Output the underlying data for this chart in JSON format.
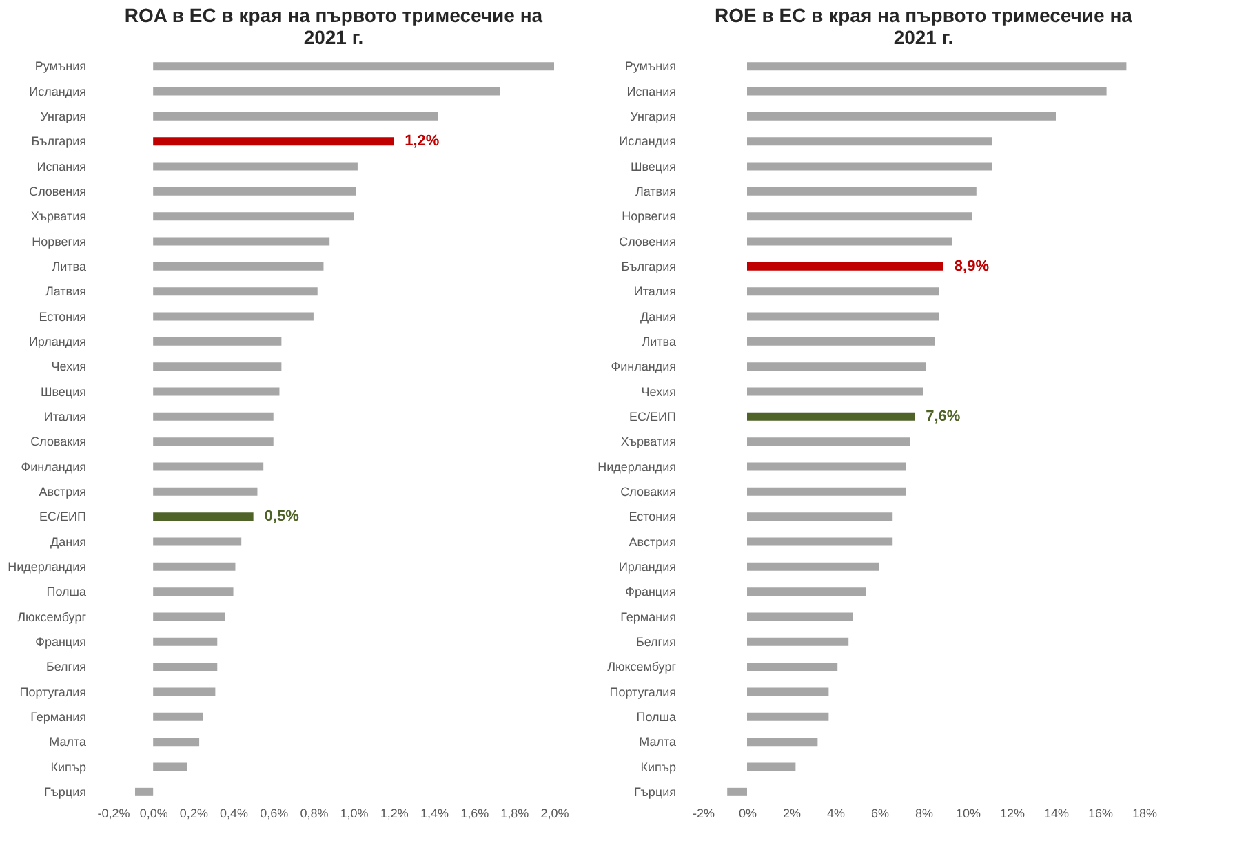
{
  "chart_data": [
    {
      "type": "bar",
      "orientation": "horizontal",
      "title": "ROA в ЕС в края на първото тримесечие на 2021 г.",
      "categories": [
        "Румъния",
        "Исландия",
        "Унгария",
        "България",
        "Испания",
        "Словения",
        "Хърватия",
        "Норвегия",
        "Литва",
        "Латвия",
        "Естония",
        "Ирландия",
        "Чехия",
        "Швеция",
        "Италия",
        "Словакия",
        "Финландия",
        "Австрия",
        "ЕС/ЕИП",
        "Дания",
        "Нидерландия",
        "Полша",
        "Люксембург",
        "Франция",
        "Белгия",
        "Португалия",
        "Германия",
        "Малта",
        "Кипър",
        "Гърция"
      ],
      "values": [
        2.0,
        1.73,
        1.42,
        1.2,
        1.02,
        1.01,
        1.0,
        0.88,
        0.85,
        0.82,
        0.8,
        0.64,
        0.64,
        0.63,
        0.6,
        0.6,
        0.55,
        0.52,
        0.5,
        0.44,
        0.41,
        0.4,
        0.36,
        0.32,
        0.32,
        0.31,
        0.25,
        0.23,
        0.17,
        -0.09
      ],
      "colors": [
        "#a6a6a6",
        "#a6a6a6",
        "#a6a6a6",
        "#c00000",
        "#a6a6a6",
        "#a6a6a6",
        "#a6a6a6",
        "#a6a6a6",
        "#a6a6a6",
        "#a6a6a6",
        "#a6a6a6",
        "#a6a6a6",
        "#a6a6a6",
        "#a6a6a6",
        "#a6a6a6",
        "#a6a6a6",
        "#a6a6a6",
        "#a6a6a6",
        "#4f6228",
        "#a6a6a6",
        "#a6a6a6",
        "#a6a6a6",
        "#a6a6a6",
        "#a6a6a6",
        "#a6a6a6",
        "#a6a6a6",
        "#a6a6a6",
        "#a6a6a6",
        "#a6a6a6",
        "#a6a6a6"
      ],
      "value_labels": [
        null,
        null,
        null,
        "1,2%",
        null,
        null,
        null,
        null,
        null,
        null,
        null,
        null,
        null,
        null,
        null,
        null,
        null,
        null,
        "0,5%",
        null,
        null,
        null,
        null,
        null,
        null,
        null,
        null,
        null,
        null,
        null
      ],
      "xlim": [
        -0.2,
        2.0
      ],
      "xticks": [
        {
          "value": -0.2,
          "label": "-0,2%"
        },
        {
          "value": 0,
          "label": "0,0%"
        },
        {
          "value": 0.2,
          "label": "0,2%"
        },
        {
          "value": 0.4,
          "label": "0,4%"
        },
        {
          "value": 0.6,
          "label": "0,6%"
        },
        {
          "value": 0.8,
          "label": "0,8%"
        },
        {
          "value": 1.0,
          "label": "1,0%"
        },
        {
          "value": 1.2,
          "label": "1,2%"
        },
        {
          "value": 1.4,
          "label": "1,4%"
        },
        {
          "value": 1.6,
          "label": "1,6%"
        },
        {
          "value": 1.8,
          "label": "1,8%"
        },
        {
          "value": 2.0,
          "label": "2,0%"
        }
      ],
      "grid": false
    },
    {
      "type": "bar",
      "orientation": "horizontal",
      "title": "ROE в ЕС в края на първото тримесечие на 2021 г.",
      "categories": [
        "Румъния",
        "Испания",
        "Унгария",
        "Исландия",
        "Швеция",
        "Латвия",
        "Норвегия",
        "Словения",
        "България",
        "Италия",
        "Дания",
        "Литва",
        "Финландия",
        "Чехия",
        "ЕС/ЕИП",
        "Хърватия",
        "Нидерландия",
        "Словакия",
        "Естония",
        "Австрия",
        "Ирландия",
        "Франция",
        "Германия",
        "Белгия",
        "Люксембург",
        "Португалия",
        "Полша",
        "Малта",
        "Кипър",
        "Гърция"
      ],
      "values": [
        17.2,
        16.3,
        14.0,
        11.1,
        11.1,
        10.4,
        10.2,
        9.3,
        8.9,
        8.7,
        8.7,
        8.5,
        8.1,
        8.0,
        7.6,
        7.4,
        7.2,
        7.2,
        6.6,
        6.6,
        6.0,
        5.4,
        4.8,
        4.6,
        4.1,
        3.7,
        3.7,
        3.2,
        2.2,
        -0.9
      ],
      "colors": [
        "#a6a6a6",
        "#a6a6a6",
        "#a6a6a6",
        "#a6a6a6",
        "#a6a6a6",
        "#a6a6a6",
        "#a6a6a6",
        "#a6a6a6",
        "#c00000",
        "#a6a6a6",
        "#a6a6a6",
        "#a6a6a6",
        "#a6a6a6",
        "#a6a6a6",
        "#4f6228",
        "#a6a6a6",
        "#a6a6a6",
        "#a6a6a6",
        "#a6a6a6",
        "#a6a6a6",
        "#a6a6a6",
        "#a6a6a6",
        "#a6a6a6",
        "#a6a6a6",
        "#a6a6a6",
        "#a6a6a6",
        "#a6a6a6",
        "#a6a6a6",
        "#a6a6a6",
        "#a6a6a6"
      ],
      "value_labels": [
        null,
        null,
        null,
        null,
        null,
        null,
        null,
        null,
        "8,9%",
        null,
        null,
        null,
        null,
        null,
        "7,6%",
        null,
        null,
        null,
        null,
        null,
        null,
        null,
        null,
        null,
        null,
        null,
        null,
        null,
        null,
        null
      ],
      "xlim": [
        -2,
        18
      ],
      "xticks": [
        {
          "value": -2,
          "label": "-2%"
        },
        {
          "value": 0,
          "label": "0%"
        },
        {
          "value": 2,
          "label": "2%"
        },
        {
          "value": 4,
          "label": "4%"
        },
        {
          "value": 6,
          "label": "6%"
        },
        {
          "value": 8,
          "label": "8%"
        },
        {
          "value": 10,
          "label": "10%"
        },
        {
          "value": 12,
          "label": "12%"
        },
        {
          "value": 14,
          "label": "14%"
        },
        {
          "value": 16,
          "label": "16%"
        },
        {
          "value": 18,
          "label": "18%"
        }
      ],
      "grid": false
    }
  ]
}
